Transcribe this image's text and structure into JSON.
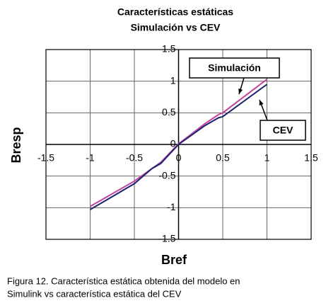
{
  "chart_data": {
    "type": "line",
    "title": "Características estáticas",
    "subtitle": "Simulación vs CEV",
    "x_label": "Bref",
    "y_label": "Bresp",
    "caption": [
      "Figura 12.  Característica estática obtenida del modelo en",
      "Simulink  vs  característica estática del CEV"
    ],
    "x": [
      -1,
      -0.5,
      -0.3,
      -0.2,
      0,
      0.3,
      0.45,
      0.5,
      1
    ],
    "series": [
      {
        "name": "Simulación",
        "color": "#c2409e",
        "values": [
          -0.98,
          -0.58,
          -0.38,
          -0.28,
          0.01,
          0.33,
          0.47,
          0.5,
          1.03
        ]
      },
      {
        "name": "CEV",
        "color": "#1c2470",
        "values": [
          -1.03,
          -0.62,
          -0.38,
          -0.3,
          0,
          0.3,
          0.42,
          0.44,
          0.95
        ]
      }
    ],
    "xlim": [
      -1.5,
      1.5
    ],
    "ylim": [
      -1.5,
      1.5
    ],
    "xticks": [
      -1.5,
      -1,
      -0.5,
      0,
      0.5,
      1,
      1.5
    ],
    "yticks": [
      -1.5,
      -1,
      -0.5,
      0,
      0.5,
      1,
      1.5
    ],
    "grid": true
  }
}
